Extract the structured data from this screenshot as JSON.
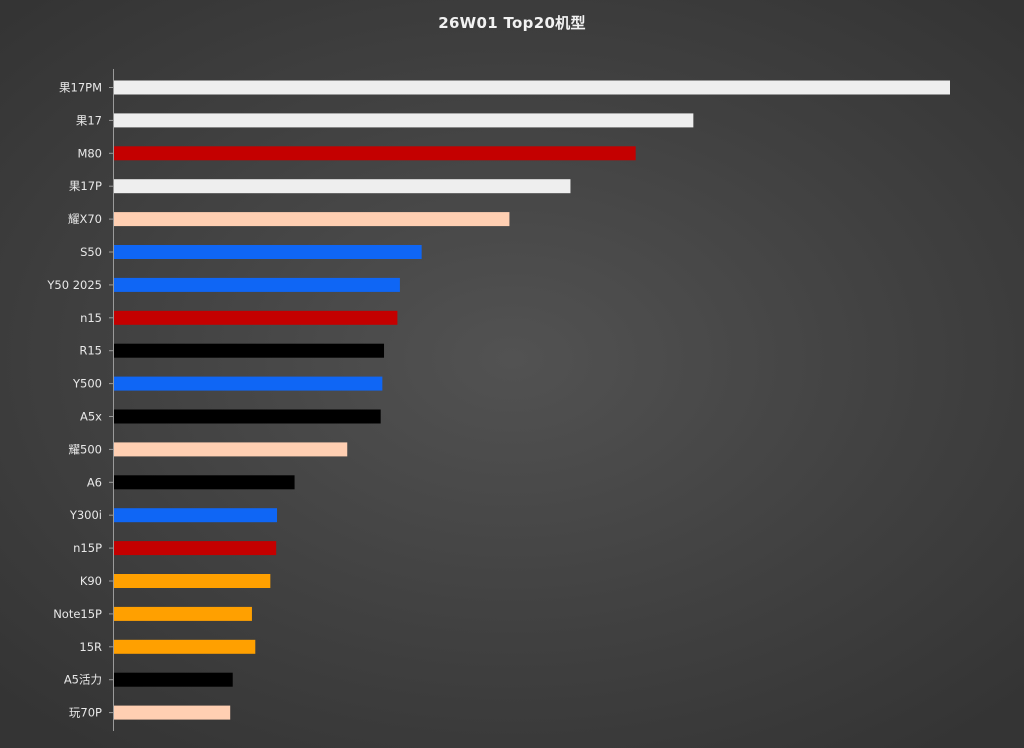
{
  "chart_data": {
    "type": "bar",
    "orientation": "horizontal",
    "title": "26W01  Top20机型",
    "xlabel": "",
    "ylabel": "",
    "grid": false,
    "legend": "none",
    "xlim": [
      0,
      100
    ],
    "categories": [
      "果17PM",
      "果17",
      "M80",
      "果17P",
      "耀X70",
      "S50",
      "Y50 2025",
      "n15",
      "R15",
      "Y500",
      "A5x",
      "耀500",
      "A6",
      "Y300i",
      "n15P",
      "K90",
      "Note15P",
      "15R",
      "A5活力",
      "玩70P"
    ],
    "values": [
      100,
      69.3,
      62.4,
      54.6,
      47.3,
      36.8,
      34.2,
      33.9,
      32.3,
      32.1,
      31.9,
      27.9,
      21.6,
      19.5,
      19.4,
      18.7,
      16.5,
      16.9,
      14.2,
      13.9
    ],
    "colors": [
      "#eeeeee",
      "#eeeeee",
      "#c40000",
      "#eeeeee",
      "#ffcfb2",
      "#0f66f5",
      "#0f66f5",
      "#c40000",
      "#000000",
      "#0f66f5",
      "#000000",
      "#ffcfb2",
      "#000000",
      "#0f66f5",
      "#c40000",
      "#ffa000",
      "#ffa000",
      "#ffa000",
      "#000000",
      "#ffcfb2"
    ]
  }
}
